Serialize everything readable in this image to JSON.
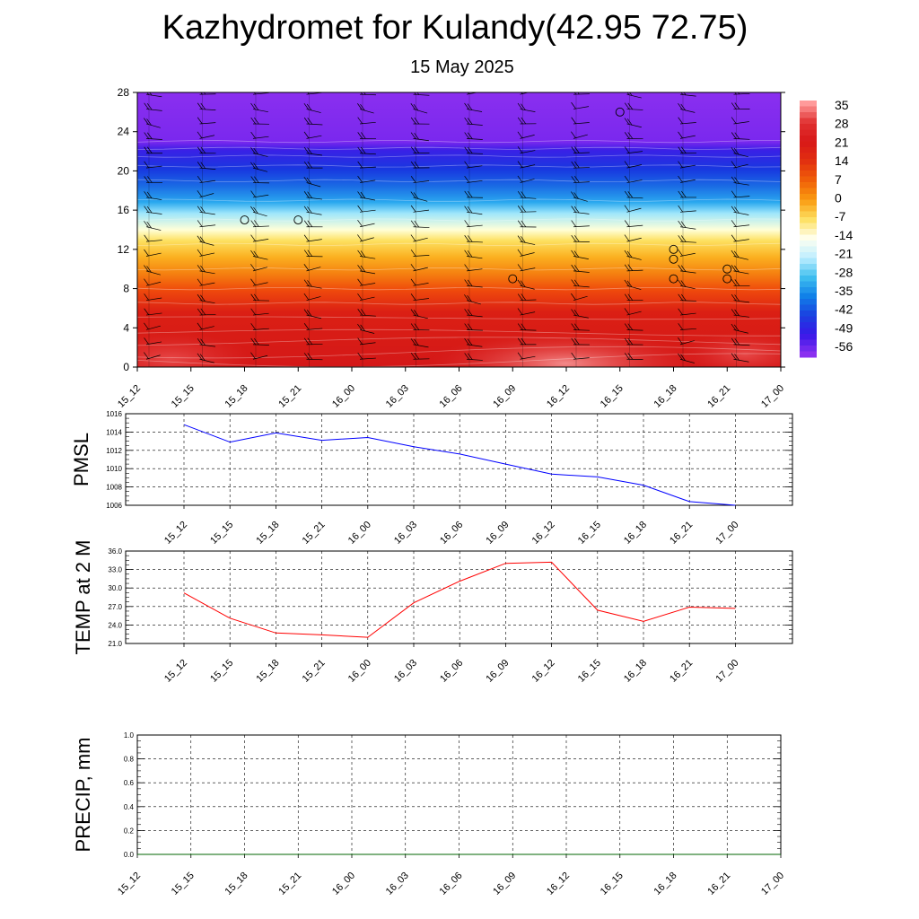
{
  "title": "Kazhydromet for Kulandy(42.95 72.75)",
  "subtitle": "15 May 2025",
  "time_labels": [
    "15_12",
    "15_15",
    "15_18",
    "15_21",
    "16_00",
    "16_03",
    "16_06",
    "16_09",
    "16_12",
    "16_15",
    "16_18",
    "16_21",
    "17_00"
  ],
  "chart_data": [
    {
      "type": "heatmap",
      "name_hint": "temperature-height cross section",
      "ylim": [
        0,
        28
      ],
      "yticks": [
        0,
        4,
        8,
        12,
        16,
        20,
        24,
        28
      ],
      "x": [
        "15_12",
        "15_15",
        "15_18",
        "15_21",
        "16_00",
        "16_03",
        "16_06",
        "16_09",
        "16_12",
        "16_15",
        "16_18",
        "16_21",
        "17_00"
      ],
      "colorbar": {
        "labels": [
          "35",
          "28",
          "21",
          "14",
          "7",
          "0",
          "-7",
          "-14",
          "-21",
          "-28",
          "-35",
          "-42",
          "-49",
          "-56"
        ],
        "colors": [
          "#ff9a9a",
          "#e03030",
          "#d81818",
          "#e23010",
          "#f06008",
          "#fa9a10",
          "#fde060",
          "#fffff0",
          "#bfeeff",
          "#40c0f0",
          "#1080e8",
          "#1a40e0",
          "#3818e8",
          "#8a30f0"
        ]
      },
      "circle_markers": [
        {
          "x": "15_18",
          "y": 15
        },
        {
          "x": "15_21",
          "y": 15
        },
        {
          "x": "16_09",
          "y": 9
        },
        {
          "x": "16_15",
          "y": 26
        },
        {
          "x": "16_18",
          "y": 12
        },
        {
          "x": "16_18",
          "y": 11
        },
        {
          "x": "16_18",
          "y": 9
        },
        {
          "x": "16_21",
          "y": 10
        },
        {
          "x": "16_21",
          "y": 9
        }
      ]
    },
    {
      "type": "line",
      "ylabel": "PMSL",
      "ylim": [
        1006,
        1016
      ],
      "yticks": [
        "1006",
        "1008",
        "1010",
        "1012",
        "1014",
        "1016"
      ],
      "x": [
        "15_12",
        "15_15",
        "15_18",
        "15_21",
        "16_00",
        "16_03",
        "16_06",
        "16_09",
        "16_12",
        "16_15",
        "16_18",
        "16_21",
        "17_00"
      ],
      "series": [
        {
          "values": [
            1014.8,
            1012.9,
            1013.9,
            1013.1,
            1013.4,
            1012.4,
            1011.6,
            1010.5,
            1009.4,
            1009.1,
            1008.2,
            1006.4,
            1006.0
          ],
          "color": "#0000ff"
        }
      ],
      "grid": true
    },
    {
      "type": "line",
      "ylabel": "TEMP at 2 M",
      "ylim": [
        21.0,
        36.0
      ],
      "yticks": [
        "21.0",
        "24.0",
        "27.0",
        "30.0",
        "33.0",
        "36.0"
      ],
      "x": [
        "15_12",
        "15_15",
        "15_18",
        "15_21",
        "16_00",
        "16_03",
        "16_06",
        "16_09",
        "16_12",
        "16_15",
        "16_18",
        "16_21",
        "17_00"
      ],
      "series": [
        {
          "values": [
            29.2,
            25.1,
            22.7,
            22.4,
            22.0,
            27.6,
            31.1,
            34.0,
            34.2,
            26.4,
            24.6,
            26.9,
            26.7
          ],
          "color": "#ff0000"
        }
      ],
      "grid": true
    },
    {
      "type": "line",
      "ylabel": "PRECIP, mm",
      "ylim": [
        0.0,
        1.0
      ],
      "yticks": [
        "0.0",
        "0.2",
        "0.4",
        "0.6",
        "0.8",
        "1.0"
      ],
      "x": [
        "15_12",
        "15_15",
        "15_18",
        "15_21",
        "16_00",
        "16_03",
        "16_06",
        "16_09",
        "16_12",
        "16_15",
        "16_18",
        "16_21",
        "17_00"
      ],
      "series": [
        {
          "values": [
            0,
            0,
            0,
            0,
            0,
            0,
            0,
            0,
            0,
            0,
            0,
            0,
            0
          ],
          "color": "#006400"
        }
      ],
      "grid": true
    }
  ]
}
